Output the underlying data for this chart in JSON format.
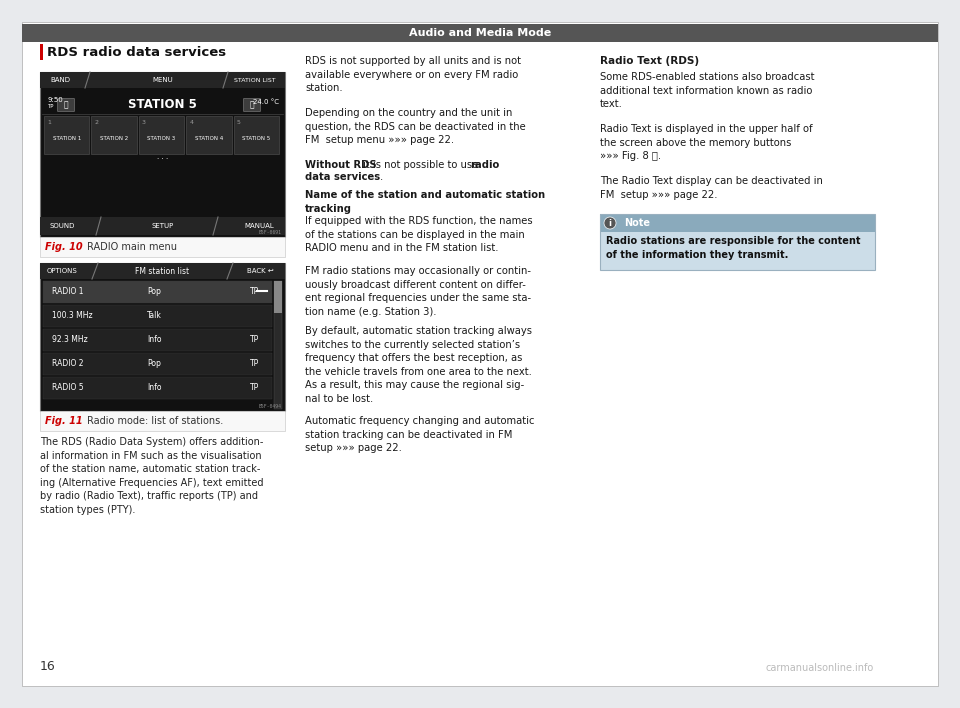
{
  "page_bg": "#e8eaed",
  "content_bg": "#ffffff",
  "header_bg": "#555555",
  "header_text": "Audio and Media Mode",
  "header_text_color": "#ffffff",
  "page_number": "16",
  "section_title": "RDS radio data services",
  "section_title_color": "#cc0000",
  "left_bar_color": "#cc0000",
  "fig10_label": "Fig. 10",
  "fig10_caption": "RADIO main menu",
  "fig11_label": "Fig. 11",
  "fig11_caption": "Radio mode: list of stations.",
  "note_bg_header": "#8aaabc",
  "note_bg_body": "#ccdde8",
  "note_title": "Note",
  "note_icon_color": "#ffffff",
  "note_text": "Radio stations are responsible for the content\nof the information they transmit.",
  "col1_body": "The RDS (Radio Data System) offers addition-\nal information in FM such as the visualisation\nof the station name, automatic station track-\ning (Alternative Frequencies AF), text emitted\nby radio (Radio Text), traffic reports (TP) and\nstation types (PTY).",
  "col2_para1": "RDS is not supported by all units and is not\navailable everywhere or on every FM radio\nstation.",
  "col2_para2": "Depending on the country and the unit in\nquestion, the RDS can be deactivated in the\nFM  setup menu »»» page 22.",
  "col2_para3_bold": "Without RDS",
  "col2_para3_rest": " it is not possible to use radio\ndata services.",
  "col2_para4_bold": "Name of the station and automatic station\ntracking",
  "col2_para5": "If equipped with the RDS function, the names\nof the stations can be displayed in the main\nRADIO menu and in the FM station list.",
  "col2_para6": "FM radio stations may occasionally or contin-\nuously broadcast different content on differ-\nent regional frequencies under the same sta-\ntion name (e.g. Station 3).",
  "col2_para7": "By default, automatic station tracking always\nswitches to the currently selected station’s\nfrequency that offers the best reception, as\nthe vehicle travels from one area to the next.\nAs a result, this may cause the regional sig-\nnal to be lost.",
  "col2_para8": "Automatic frequency changing and automatic\nstation tracking can be deactivated in FM\nsetup »»» page 22.",
  "col3_head_bold": "Radio Text (RDS)",
  "col3_para1": "Some RDS-enabled stations also broadcast\nadditional text information known as radio\ntext.",
  "col3_para2": "Radio Text is displayed in the upper half of\nthe screen above the memory buttons\n»»» Fig. 8 Ⓐ.",
  "col3_para3": "The Radio Text display can be deactivated in\nFM  setup »»» page 22.",
  "watermark": "carmanualsonline.info"
}
